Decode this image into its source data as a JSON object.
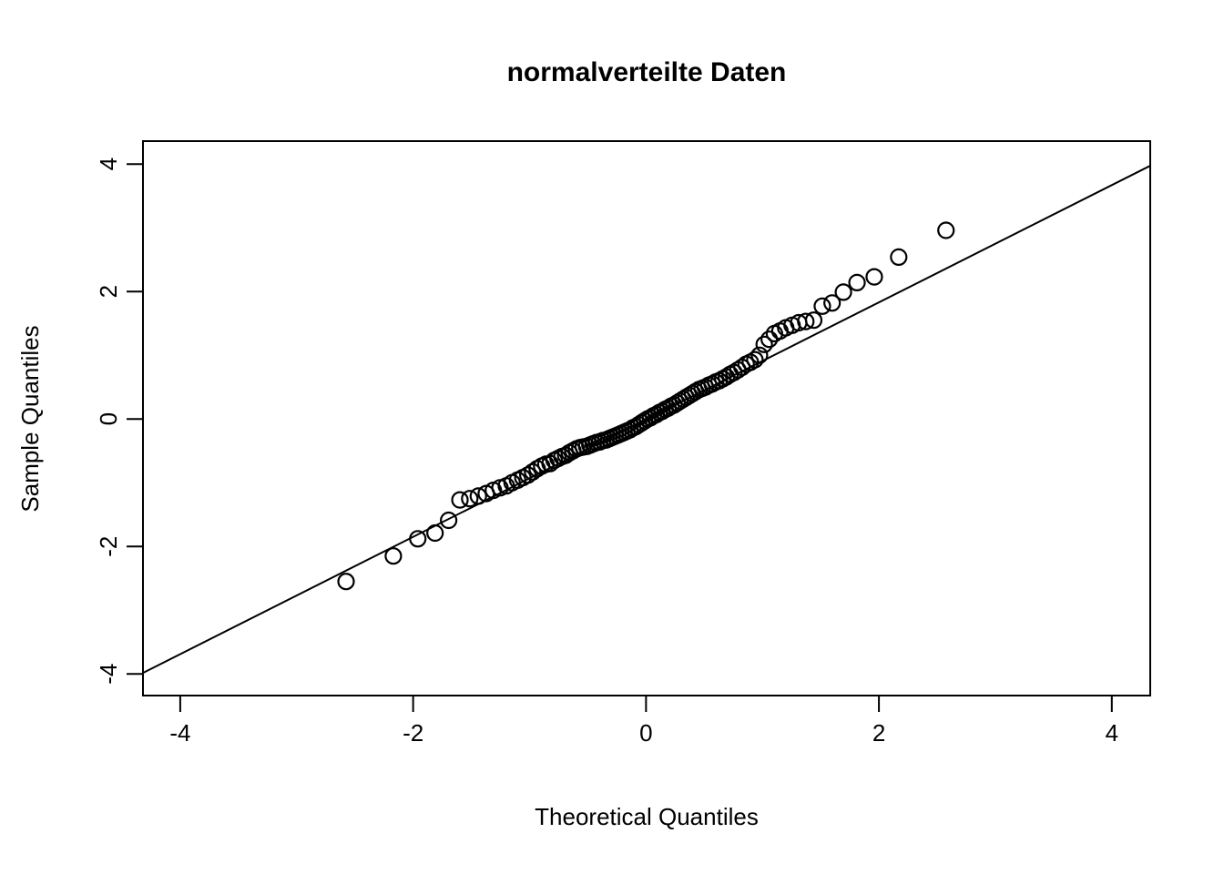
{
  "chart_data": {
    "type": "scatter",
    "title": "normalverteilte Daten",
    "xlabel": "Theoretical Quantiles",
    "ylabel": "Sample Quantiles",
    "xlim": [
      -4.32,
      4.33
    ],
    "ylim": [
      -4.34,
      4.36
    ],
    "xticks": [
      -4,
      -2,
      0,
      2,
      4
    ],
    "yticks": [
      -4,
      -2,
      0,
      2,
      4
    ],
    "grid": false,
    "legend": "none",
    "marker": "open-circle",
    "marker_radius_px": 8.5,
    "colors": {
      "points": "#000000",
      "ref_line": "#000000",
      "frame": "#000000",
      "text": "#000000",
      "background": "#ffffff"
    },
    "ref_line": {
      "slope": 0.92,
      "intercept": -0.01
    },
    "points": [
      [
        -2.576,
        -2.55
      ],
      [
        -2.17,
        -2.15
      ],
      [
        -1.96,
        -1.88
      ],
      [
        -1.812,
        -1.79
      ],
      [
        -1.695,
        -1.59
      ],
      [
        -1.598,
        -1.27
      ],
      [
        -1.514,
        -1.25
      ],
      [
        -1.44,
        -1.21
      ],
      [
        -1.372,
        -1.17
      ],
      [
        -1.311,
        -1.12
      ],
      [
        -1.254,
        -1.08
      ],
      [
        -1.2,
        -1.05
      ],
      [
        -1.15,
        -1.0
      ],
      [
        -1.103,
        -0.96
      ],
      [
        -1.058,
        -0.92
      ],
      [
        -1.015,
        -0.88
      ],
      [
        -0.974,
        -0.83
      ],
      [
        -0.935,
        -0.78
      ],
      [
        -0.896,
        -0.74
      ],
      [
        -0.86,
        -0.71
      ],
      [
        -0.824,
        -0.7
      ],
      [
        -0.789,
        -0.65
      ],
      [
        -0.755,
        -0.62
      ],
      [
        -0.722,
        -0.59
      ],
      [
        -0.69,
        -0.57
      ],
      [
        -0.659,
        -0.53
      ],
      [
        -0.628,
        -0.5
      ],
      [
        -0.598,
        -0.47
      ],
      [
        -0.568,
        -0.45
      ],
      [
        -0.539,
        -0.44
      ],
      [
        -0.51,
        -0.43
      ],
      [
        -0.482,
        -0.41
      ],
      [
        -0.454,
        -0.39
      ],
      [
        -0.426,
        -0.37
      ],
      [
        -0.399,
        -0.36
      ],
      [
        -0.372,
        -0.34
      ],
      [
        -0.345,
        -0.33
      ],
      [
        -0.319,
        -0.31
      ],
      [
        -0.292,
        -0.29
      ],
      [
        -0.266,
        -0.27
      ],
      [
        -0.24,
        -0.25
      ],
      [
        -0.215,
        -0.23
      ],
      [
        -0.189,
        -0.21
      ],
      [
        -0.164,
        -0.19
      ],
      [
        -0.138,
        -0.17
      ],
      [
        -0.113,
        -0.14
      ],
      [
        -0.088,
        -0.12
      ],
      [
        -0.063,
        -0.09
      ],
      [
        -0.038,
        -0.06
      ],
      [
        -0.013,
        -0.03
      ],
      [
        0.013,
        0.0
      ],
      [
        0.038,
        0.02
      ],
      [
        0.063,
        0.05
      ],
      [
        0.088,
        0.07
      ],
      [
        0.113,
        0.1
      ],
      [
        0.138,
        0.12
      ],
      [
        0.164,
        0.15
      ],
      [
        0.189,
        0.17
      ],
      [
        0.215,
        0.2
      ],
      [
        0.24,
        0.22
      ],
      [
        0.266,
        0.25
      ],
      [
        0.292,
        0.28
      ],
      [
        0.319,
        0.31
      ],
      [
        0.345,
        0.34
      ],
      [
        0.372,
        0.37
      ],
      [
        0.399,
        0.4
      ],
      [
        0.426,
        0.43
      ],
      [
        0.454,
        0.46
      ],
      [
        0.482,
        0.48
      ],
      [
        0.51,
        0.5
      ],
      [
        0.539,
        0.53
      ],
      [
        0.568,
        0.55
      ],
      [
        0.598,
        0.58
      ],
      [
        0.628,
        0.6
      ],
      [
        0.659,
        0.63
      ],
      [
        0.69,
        0.66
      ],
      [
        0.722,
        0.7
      ],
      [
        0.755,
        0.73
      ],
      [
        0.789,
        0.77
      ],
      [
        0.824,
        0.81
      ],
      [
        0.86,
        0.86
      ],
      [
        0.896,
        0.89
      ],
      [
        0.935,
        0.93
      ],
      [
        0.974,
        1.0
      ],
      [
        1.015,
        1.17
      ],
      [
        1.058,
        1.25
      ],
      [
        1.103,
        1.34
      ],
      [
        1.15,
        1.38
      ],
      [
        1.2,
        1.43
      ],
      [
        1.254,
        1.47
      ],
      [
        1.311,
        1.51
      ],
      [
        1.372,
        1.53
      ],
      [
        1.44,
        1.55
      ],
      [
        1.514,
        1.77
      ],
      [
        1.598,
        1.82
      ],
      [
        1.695,
        1.99
      ],
      [
        1.812,
        2.14
      ],
      [
        1.96,
        2.23
      ],
      [
        2.17,
        2.54
      ],
      [
        2.576,
        2.96
      ]
    ]
  }
}
